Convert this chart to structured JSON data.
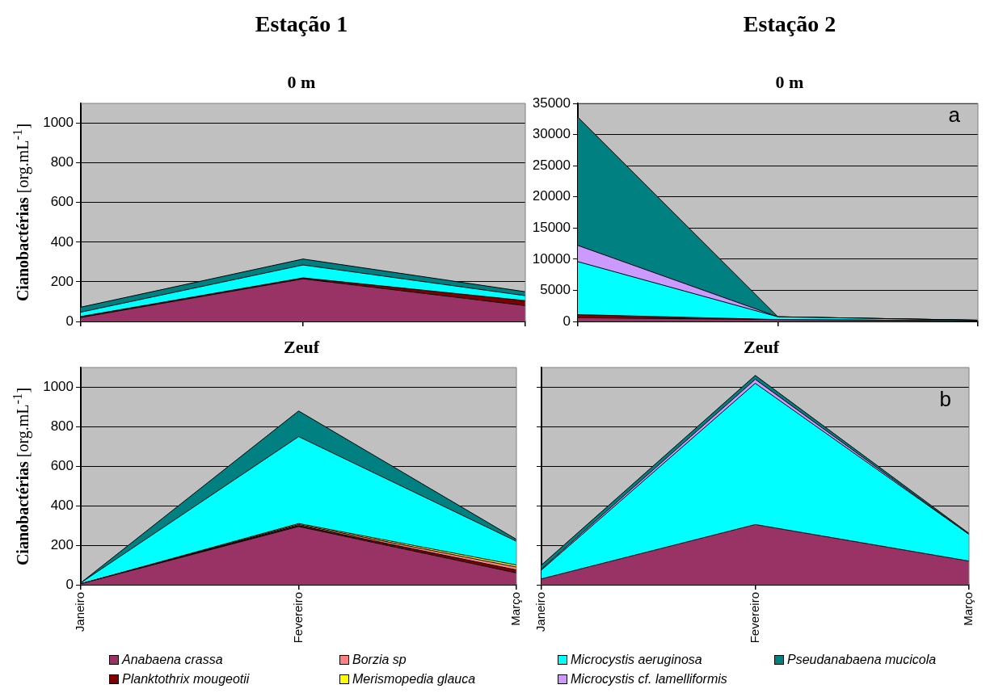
{
  "chart_data": [
    {
      "type": "area",
      "stacked": true,
      "title": "Estação 1",
      "subtitle": "0 m",
      "ylabel": "Cianobactérias [org.mL$^{-1}$]",
      "categories": [
        null,
        null,
        null
      ],
      "ylim": [
        0,
        1100
      ],
      "yticks": [
        0,
        200,
        400,
        600,
        800,
        1000
      ],
      "grid": "y",
      "tick_labels": "y",
      "series": [
        {
          "color": "#993366",
          "values": [
            20,
            215,
            80
          ]
        },
        {
          "color": "#800000",
          "values": [
            5,
            5,
            25
          ]
        },
        {
          "color": "#00ffff",
          "values": [
            22,
            65,
            25
          ]
        },
        {
          "color": "#008080",
          "values": [
            25,
            30,
            20
          ]
        }
      ]
    },
    {
      "type": "area",
      "stacked": true,
      "title": "Estação 2",
      "subtitle": "0 m",
      "categories": [
        null,
        null,
        null
      ],
      "ylim": [
        0,
        35000
      ],
      "yticks": [
        0,
        5000,
        10000,
        15000,
        20000,
        25000,
        30000,
        35000
      ],
      "grid": "y",
      "tick_labels": "y",
      "annotations": [
        "a"
      ],
      "series": [
        {
          "color": "#993366",
          "values": [
            600,
            300,
            100
          ]
        },
        {
          "color": "#800000",
          "values": [
            500,
            0,
            0
          ]
        },
        {
          "color": "#00ffff",
          "values": [
            8500,
            450,
            100
          ]
        },
        {
          "color": "#cc99ff",
          "values": [
            2600,
            0,
            0
          ]
        },
        {
          "color": "#008080",
          "values": [
            20600,
            0,
            0
          ]
        }
      ]
    },
    {
      "type": "area",
      "stacked": true,
      "title": "Zeuf",
      "ylabel": "Cianobactérias [org.mL$^{-1}$]",
      "categories": [
        "Janeiro",
        "Fevereiro",
        "Março"
      ],
      "ylim": [
        0,
        1100
      ],
      "yticks": [
        0,
        200,
        400,
        600,
        800,
        1000
      ],
      "grid": "y",
      "legend": "bottom",
      "series": [
        {
          "name": "Anabaena crassa",
          "color": "#993366",
          "values": [
            5,
            295,
            60
          ]
        },
        {
          "name": "Planktothrix mougeotii",
          "color": "#800000",
          "values": [
            0,
            5,
            15
          ]
        },
        {
          "name": "Borzia sp",
          "color": "#ff8080",
          "values": [
            0,
            5,
            15
          ]
        },
        {
          "name": "Merismopedia glauca",
          "color": "#ffff00",
          "values": [
            0,
            5,
            10
          ]
        },
        {
          "color": "#00ffff",
          "values": [
            5,
            440,
            120
          ]
        },
        {
          "color": "#008080",
          "values": [
            0,
            130,
            10
          ]
        }
      ]
    },
    {
      "type": "area",
      "stacked": true,
      "title": "Zeuf",
      "categories": [
        "Janeiro",
        "Fevereiro",
        "Março"
      ],
      "ylim": [
        0,
        1100
      ],
      "yticks": [
        0,
        200,
        400,
        600,
        800,
        1000
      ],
      "grid": "y",
      "tick_labels": "x",
      "legend": "bottom",
      "annotations": [
        "b"
      ],
      "series": [
        {
          "color": "#993366",
          "values": [
            30,
            305,
            120
          ]
        },
        {
          "name": "Microcystis aeruginosa",
          "color": "#00ffff",
          "values": [
            45,
            715,
            135
          ]
        },
        {
          "name": "Microcystis cf. lamelliformis",
          "color": "#cc99ff",
          "values": [
            5,
            20,
            0
          ]
        },
        {
          "name": "Pseudanabaena mucicola",
          "color": "#008080",
          "values": [
            20,
            20,
            5
          ]
        }
      ]
    }
  ]
}
